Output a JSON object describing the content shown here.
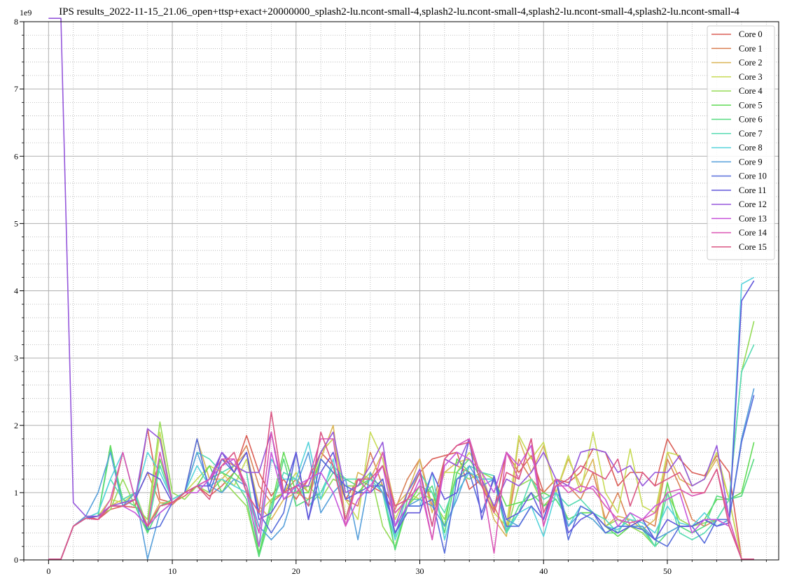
{
  "chart_data": {
    "type": "line",
    "title": "IPS results_2022-11-15_21.06_open+ttsp+exact+20000000_splash2-lu.ncont-small-4,splash2-lu.ncont-small-4,splash2-lu.ncont-small-4,splash2-lu.ncont-small-4",
    "y_multiplier": "1e9",
    "xlabel": "",
    "ylabel": "",
    "xlim": [
      -2,
      59
    ],
    "ylim": [
      0,
      8
    ],
    "x_ticks": [
      "0",
      "10",
      "20",
      "30",
      "40",
      "50"
    ],
    "y_ticks": [
      "0",
      "1",
      "2",
      "3",
      "4",
      "5",
      "6",
      "7",
      "8"
    ],
    "grid": true,
    "legend_position": "top-right",
    "x": [
      0,
      1,
      2,
      3,
      4,
      5,
      6,
      7,
      8,
      9,
      10,
      11,
      12,
      13,
      14,
      15,
      16,
      17,
      18,
      19,
      20,
      21,
      22,
      23,
      24,
      25,
      26,
      27,
      28,
      29,
      30,
      31,
      32,
      33,
      34,
      35,
      36,
      37,
      38,
      39,
      40,
      41,
      42,
      43,
      44,
      45,
      46,
      47,
      48,
      49,
      50,
      51,
      52,
      53,
      54,
      55,
      56,
      57
    ],
    "series": [
      {
        "name": "Core 0",
        "color": "#db5f57",
        "values": [
          0.01,
          0.01,
          0.5,
          0.65,
          0.6,
          0.75,
          0.8,
          0.78,
          1.95,
          0.9,
          0.85,
          0.95,
          1.1,
          0.95,
          1.1,
          1.3,
          1.85,
          1.3,
          0.95,
          1.2,
          0.9,
          1.2,
          1.6,
          1.4,
          0.9,
          1.2,
          1.1,
          1.0,
          0.7,
          0.9,
          1.3,
          1.5,
          1.55,
          1.6,
          1.05,
          1.2,
          0.75,
          1.6,
          1.3,
          1.55,
          1.0,
          1.2,
          1.15,
          1.3,
          1.65,
          1.6,
          1.1,
          1.3,
          1.3,
          1.1,
          1.8,
          1.5,
          1.3,
          1.25,
          1.55,
          1.3,
          0.01,
          0.01
        ]
      },
      {
        "name": "Core 1",
        "color": "#db8357",
        "values": [
          0.01,
          0.01,
          0.5,
          0.62,
          0.6,
          0.8,
          1.6,
          0.9,
          1.3,
          0.85,
          0.82,
          1.0,
          1.1,
          1.2,
          1.5,
          1.4,
          1.7,
          1.1,
          0.85,
          1.0,
          1.2,
          1.0,
          1.6,
          1.8,
          0.9,
          0.8,
          1.6,
          1.1,
          0.75,
          1.2,
          1.5,
          0.8,
          1.5,
          1.4,
          1.3,
          1.1,
          0.8,
          0.4,
          1.5,
          1.2,
          1.0,
          1.2,
          1.1,
          0.9,
          1.3,
          0.6,
          1.0,
          0.5,
          0.6,
          0.5,
          1.5,
          1.1,
          0.6,
          0.5,
          0.6,
          0.5,
          0.01,
          0.01
        ]
      },
      {
        "name": "Core 2",
        "color": "#dbb657",
        "values": [
          0.01,
          0.01,
          0.5,
          0.62,
          0.65,
          0.8,
          0.9,
          1.0,
          0.5,
          0.85,
          0.85,
          1.0,
          1.8,
          1.2,
          1.2,
          1.4,
          1.6,
          0.8,
          0.6,
          0.9,
          1.0,
          0.9,
          1.5,
          2.0,
          0.6,
          1.3,
          1.2,
          1.6,
          0.8,
          1.0,
          1.5,
          0.7,
          1.3,
          1.45,
          1.5,
          1.2,
          0.6,
          0.35,
          1.8,
          1.3,
          1.7,
          1.0,
          1.5,
          1.1,
          1.5,
          0.5,
          0.65,
          0.6,
          0.45,
          0.6,
          1.6,
          1.2,
          1.1,
          1.2,
          1.5,
          0.9,
          0.01,
          0.01
        ]
      },
      {
        "name": "Core 3",
        "color": "#c8db57",
        "values": [
          0.01,
          0.01,
          0.5,
          0.62,
          0.65,
          0.9,
          0.85,
          1.0,
          0.5,
          1.9,
          0.85,
          1.0,
          1.2,
          1.4,
          1.3,
          1.1,
          1.5,
          0.7,
          0.9,
          1.0,
          1.3,
          1.0,
          1.6,
          1.8,
          0.9,
          0.6,
          1.9,
          1.5,
          0.6,
          1.0,
          0.9,
          0.8,
          1.3,
          1.3,
          1.6,
          1.3,
          0.7,
          0.5,
          1.85,
          1.5,
          1.75,
          1.0,
          1.55,
          1.0,
          1.9,
          1.0,
          0.7,
          1.65,
          0.8,
          0.7,
          1.6,
          1.55,
          1.1,
          1.2,
          1.6,
          0.9,
          0.01,
          0.01
        ]
      },
      {
        "name": "Core 4",
        "color": "#95db57",
        "values": [
          0.01,
          0.01,
          0.5,
          0.62,
          0.65,
          0.75,
          1.2,
          0.8,
          0.6,
          2.05,
          1.0,
          0.9,
          1.1,
          1.0,
          1.2,
          1.0,
          0.8,
          0.05,
          0.9,
          1.0,
          1.0,
          1.1,
          0.9,
          1.2,
          1.1,
          1.1,
          1.3,
          0.5,
          0.2,
          0.8,
          1.0,
          0.9,
          0.6,
          1.3,
          1.2,
          1.3,
          1.2,
          0.4,
          1.1,
          1.2,
          0.8,
          1.0,
          0.6,
          0.7,
          0.7,
          0.5,
          0.6,
          0.5,
          0.4,
          0.2,
          1.0,
          0.6,
          0.5,
          0.55,
          0.6,
          0.9,
          2.8,
          3.55
        ]
      },
      {
        "name": "Core 5",
        "color": "#62db57",
        "values": [
          0.01,
          0.01,
          0.5,
          0.62,
          0.65,
          1.7,
          0.8,
          1.0,
          0.4,
          1.5,
          0.9,
          1.0,
          1.1,
          1.4,
          1.0,
          1.3,
          1.1,
          0.1,
          0.8,
          1.6,
          1.0,
          1.0,
          1.5,
          1.3,
          1.1,
          1.0,
          1.2,
          1.1,
          0.15,
          0.8,
          1.1,
          1.0,
          0.5,
          1.5,
          1.3,
          1.2,
          1.2,
          0.8,
          0.85,
          0.9,
          1.0,
          0.9,
          0.6,
          0.7,
          0.7,
          0.5,
          0.35,
          0.5,
          0.45,
          0.2,
          1.15,
          0.5,
          0.5,
          0.6,
          0.9,
          0.9,
          1.0,
          1.75
        ]
      },
      {
        "name": "Core 6",
        "color": "#57db80",
        "values": [
          0.01,
          0.01,
          0.5,
          0.62,
          0.65,
          1.65,
          0.9,
          0.8,
          0.4,
          0.8,
          0.9,
          1.0,
          1.1,
          1.2,
          1.3,
          1.2,
          0.9,
          0.05,
          0.7,
          1.5,
          0.8,
          0.9,
          1.0,
          1.3,
          1.2,
          1.1,
          1.2,
          1.0,
          0.15,
          0.9,
          0.9,
          1.1,
          0.4,
          1.3,
          1.5,
          1.2,
          1.2,
          0.4,
          0.8,
          1.0,
          0.8,
          0.9,
          0.6,
          0.7,
          0.6,
          0.4,
          0.4,
          0.5,
          0.5,
          0.2,
          0.4,
          0.5,
          0.4,
          0.5,
          0.95,
          0.9,
          0.95,
          1.5
        ]
      },
      {
        "name": "Core 7",
        "color": "#57dbb3",
        "values": [
          0.01,
          0.01,
          0.5,
          0.62,
          0.7,
          1.2,
          0.9,
          1.0,
          0.45,
          1.4,
          0.9,
          1.0,
          1.6,
          1.5,
          1.3,
          1.4,
          1.3,
          0.2,
          0.8,
          1.3,
          1.2,
          0.8,
          1.0,
          1.4,
          1.2,
          1.2,
          1.0,
          1.2,
          0.35,
          1.0,
          1.3,
          1.0,
          0.7,
          1.2,
          1.4,
          1.3,
          1.25,
          0.4,
          0.7,
          1.2,
          0.9,
          1.0,
          0.8,
          0.9,
          0.7,
          0.6,
          0.4,
          0.7,
          0.45,
          0.2,
          1.0,
          0.4,
          0.3,
          0.4,
          0.6,
          0.9,
          2.8,
          3.2
        ]
      },
      {
        "name": "Core 8",
        "color": "#57d3db",
        "values": [
          0.01,
          0.01,
          0.5,
          0.62,
          0.7,
          1.2,
          1.6,
          0.9,
          1.6,
          1.3,
          0.9,
          1.0,
          1.4,
          1.1,
          1.2,
          1.1,
          1.0,
          0.4,
          1.5,
          1.2,
          1.2,
          1.75,
          0.9,
          1.5,
          0.6,
          1.2,
          1.2,
          1.0,
          0.3,
          0.8,
          0.8,
          1.3,
          0.3,
          1.0,
          1.3,
          1.2,
          1.2,
          0.45,
          0.7,
          0.8,
          0.35,
          1.0,
          0.5,
          0.8,
          0.7,
          0.5,
          0.45,
          0.6,
          0.55,
          0.4,
          0.8,
          0.55,
          0.5,
          0.7,
          0.5,
          0.6,
          4.1,
          4.2
        ]
      },
      {
        "name": "Core 9",
        "color": "#57a0db",
        "values": [
          0.01,
          0.01,
          0.5,
          0.65,
          1.0,
          1.6,
          0.8,
          1.0,
          0.01,
          0.7,
          0.85,
          1.0,
          1.6,
          1.1,
          1.0,
          1.2,
          1.1,
          0.5,
          0.3,
          0.5,
          1.1,
          1.6,
          0.7,
          1.0,
          1.2,
          0.3,
          1.3,
          1.0,
          0.5,
          0.8,
          0.9,
          0.8,
          0.5,
          0.9,
          1.4,
          1.1,
          1.2,
          0.6,
          0.5,
          0.8,
          0.6,
          1.2,
          0.5,
          0.7,
          0.6,
          0.4,
          0.5,
          0.5,
          0.5,
          0.3,
          0.4,
          0.5,
          0.5,
          0.6,
          0.5,
          0.6,
          1.8,
          2.55
        ]
      },
      {
        "name": "Core 10",
        "color": "#576ddb",
        "values": [
          0.01,
          0.01,
          0.5,
          0.62,
          0.65,
          0.8,
          0.8,
          0.9,
          0.45,
          0.5,
          0.85,
          1.0,
          1.8,
          1.0,
          1.5,
          1.3,
          1.6,
          0.7,
          0.4,
          0.7,
          1.6,
          0.6,
          1.5,
          1.3,
          1.1,
          1.0,
          1.1,
          1.1,
          0.4,
          0.8,
          0.8,
          0.9,
          0.1,
          1.2,
          1.3,
          0.7,
          1.2,
          0.5,
          0.5,
          0.8,
          0.6,
          1.2,
          0.3,
          0.8,
          0.7,
          0.4,
          0.5,
          0.5,
          0.45,
          0.3,
          0.2,
          0.5,
          0.5,
          0.25,
          0.6,
          0.6,
          1.75,
          2.45
        ]
      },
      {
        "name": "Core 11",
        "color": "#6257db",
        "values": [
          0.01,
          0.01,
          0.5,
          0.62,
          0.65,
          0.8,
          0.8,
          0.9,
          1.3,
          1.2,
          0.85,
          1.0,
          1.1,
          1.1,
          1.6,
          1.3,
          1.6,
          0.6,
          0.7,
          1.0,
          1.6,
          0.6,
          1.3,
          1.6,
          0.9,
          1.0,
          1.0,
          1.2,
          0.4,
          0.7,
          0.7,
          1.3,
          0.9,
          1.0,
          1.8,
          0.6,
          1.25,
          0.6,
          0.7,
          1.0,
          0.6,
          1.2,
          0.4,
          0.6,
          0.7,
          0.5,
          0.4,
          0.5,
          0.6,
          0.3,
          0.6,
          0.5,
          0.5,
          0.6,
          0.5,
          0.55,
          3.85,
          4.15
        ]
      },
      {
        "name": "Core 12",
        "color": "#9557db",
        "values": [
          8.1,
          8.1,
          0.85,
          0.65,
          0.65,
          0.8,
          0.85,
          0.9,
          1.95,
          1.8,
          0.85,
          1.0,
          1.1,
          1.2,
          1.6,
          1.4,
          1.3,
          1.3,
          1.9,
          0.9,
          1.1,
          1.1,
          1.6,
          1.9,
          1.0,
          1.1,
          1.4,
          1.75,
          0.5,
          1.0,
          1.35,
          0.5,
          1.5,
          1.4,
          1.8,
          1.2,
          0.8,
          1.2,
          1.1,
          1.3,
          1.6,
          1.2,
          1.1,
          1.6,
          1.65,
          1.6,
          1.3,
          1.4,
          1.1,
          1.3,
          1.3,
          1.55,
          1.1,
          1.2,
          1.7,
          0.6,
          0.01,
          0.01
        ]
      },
      {
        "name": "Core 13",
        "color": "#c857db",
        "values": [
          0.01,
          0.01,
          0.5,
          0.62,
          0.6,
          0.8,
          0.8,
          0.7,
          0.5,
          0.7,
          0.85,
          1.0,
          1.0,
          1.2,
          1.4,
          1.5,
          1.0,
          0.2,
          1.6,
          0.9,
          1.1,
          1.2,
          1.3,
          1.0,
          0.5,
          0.9,
          1.1,
          1.4,
          0.5,
          0.8,
          1.2,
          0.3,
          1.4,
          1.6,
          1.5,
          1.3,
          1.0,
          1.6,
          1.4,
          1.7,
          0.5,
          1.1,
          1.1,
          1.0,
          1.1,
          0.9,
          0.5,
          0.7,
          0.6,
          0.8,
          0.9,
          1.0,
          0.4,
          0.6,
          0.6,
          0.5,
          0.01,
          0.01
        ]
      },
      {
        "name": "Core 14",
        "color": "#db57b6",
        "values": [
          0.01,
          0.01,
          0.5,
          0.62,
          0.6,
          0.9,
          1.6,
          0.9,
          0.5,
          1.6,
          0.85,
          1.0,
          1.1,
          1.2,
          1.5,
          1.5,
          1.1,
          0.4,
          1.9,
          1.0,
          1.0,
          1.2,
          1.8,
          1.8,
          0.5,
          1.2,
          1.0,
          1.6,
          0.7,
          0.9,
          1.1,
          0.3,
          1.5,
          1.7,
          1.8,
          1.2,
          0.1,
          1.6,
          1.2,
          1.8,
          0.5,
          1.2,
          1.0,
          1.1,
          1.05,
          0.8,
          0.6,
          0.55,
          0.6,
          0.7,
          1.0,
          1.05,
          0.95,
          1.0,
          1.35,
          0.6,
          0.01,
          0.01
        ]
      },
      {
        "name": "Core 15",
        "color": "#db5784",
        "values": [
          0.01,
          0.01,
          0.5,
          0.62,
          0.6,
          0.8,
          0.8,
          0.9,
          0.5,
          0.8,
          0.85,
          1.0,
          1.1,
          0.9,
          1.4,
          1.6,
          1.0,
          0.7,
          2.2,
          1.0,
          1.1,
          0.8,
          1.9,
          1.4,
          0.6,
          1.2,
          1.2,
          1.4,
          0.8,
          0.9,
          1.3,
          0.5,
          1.5,
          1.7,
          1.75,
          1.1,
          0.7,
          1.3,
          1.2,
          1.8,
          0.7,
          1.1,
          1.2,
          1.4,
          1.3,
          1.2,
          1.5,
          0.8,
          1.3,
          1.1,
          1.2,
          1.3,
          1.0,
          1.0,
          1.35,
          0.5,
          0.01,
          0.01
        ]
      }
    ]
  }
}
